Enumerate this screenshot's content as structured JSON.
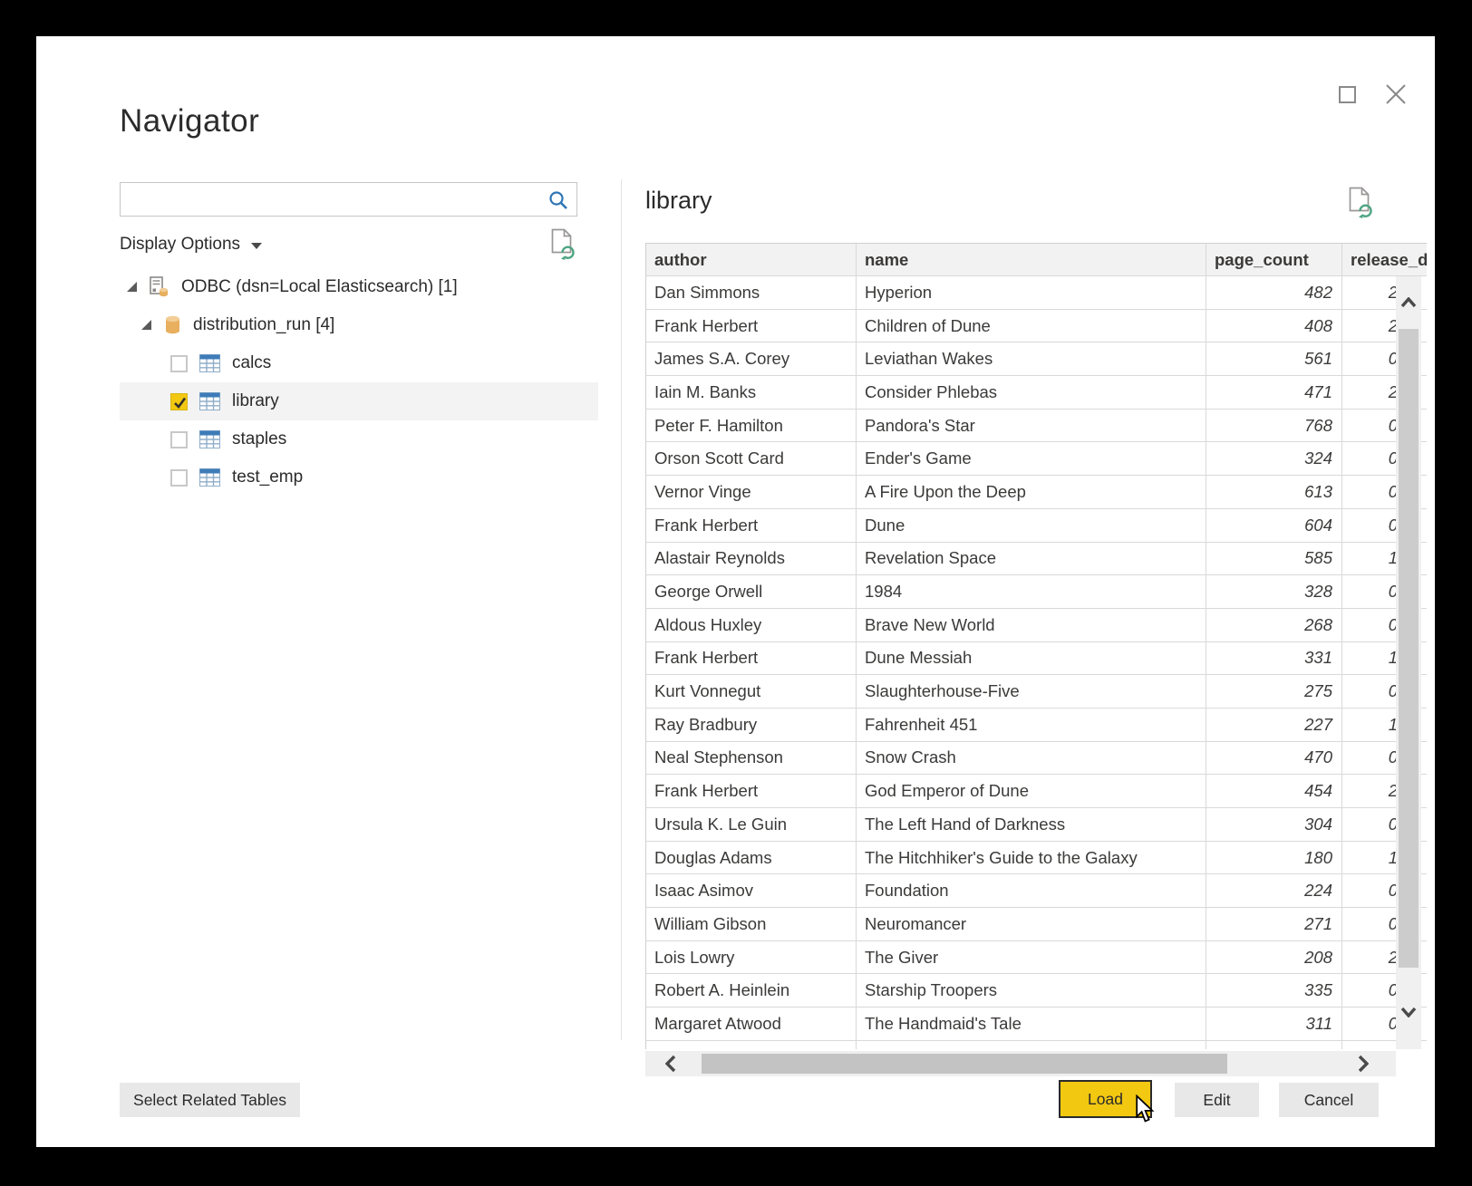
{
  "window": {
    "title": "Navigator",
    "controls": {
      "maximize_icon": "maximize",
      "close_icon": "close"
    }
  },
  "left_pane": {
    "search": {
      "value": "",
      "placeholder": "",
      "icon": "search-icon"
    },
    "display_options": {
      "label": "Display Options",
      "icon": "chevron-down-icon"
    },
    "refresh_icon": "refresh-document-icon",
    "tree": {
      "items": [
        {
          "label": "ODBC (dsn=Local Elasticsearch) [1]",
          "level": 0,
          "icon": "server-icon",
          "expanded": true,
          "checkbox": false,
          "checked": false,
          "selected": false
        },
        {
          "label": "distribution_run [4]",
          "level": 1,
          "icon": "database-icon",
          "expanded": true,
          "checkbox": false,
          "checked": false,
          "selected": false
        },
        {
          "label": "calcs",
          "level": 2,
          "icon": "table-icon",
          "checkbox": true,
          "checked": false,
          "selected": false
        },
        {
          "label": "library",
          "level": 2,
          "icon": "table-icon",
          "checkbox": true,
          "checked": true,
          "selected": true
        },
        {
          "label": "staples",
          "level": 2,
          "icon": "table-icon",
          "checkbox": true,
          "checked": false,
          "selected": false
        },
        {
          "label": "test_emp",
          "level": 2,
          "icon": "table-icon",
          "checkbox": true,
          "checked": false,
          "selected": false
        }
      ]
    }
  },
  "preview": {
    "title": "library",
    "refresh_icon": "refresh-document-icon",
    "table": {
      "columns": [
        "author",
        "name",
        "page_count",
        "release_d"
      ],
      "rows": [
        {
          "author": "Dan Simmons",
          "name": "Hyperion",
          "page_count": "482",
          "release_d_partial": "2"
        },
        {
          "author": "Frank Herbert",
          "name": "Children of Dune",
          "page_count": "408",
          "release_d_partial": "2"
        },
        {
          "author": "James S.A. Corey",
          "name": "Leviathan Wakes",
          "page_count": "561",
          "release_d_partial": "0"
        },
        {
          "author": "Iain M. Banks",
          "name": "Consider Phlebas",
          "page_count": "471",
          "release_d_partial": "2"
        },
        {
          "author": "Peter F. Hamilton",
          "name": "Pandora's Star",
          "page_count": "768",
          "release_d_partial": "0"
        },
        {
          "author": "Orson Scott Card",
          "name": "Ender's Game",
          "page_count": "324",
          "release_d_partial": "0"
        },
        {
          "author": "Vernor Vinge",
          "name": "A Fire Upon the Deep",
          "page_count": "613",
          "release_d_partial": "0"
        },
        {
          "author": "Frank Herbert",
          "name": "Dune",
          "page_count": "604",
          "release_d_partial": "0"
        },
        {
          "author": "Alastair Reynolds",
          "name": "Revelation Space",
          "page_count": "585",
          "release_d_partial": "1"
        },
        {
          "author": "George Orwell",
          "name": "1984",
          "page_count": "328",
          "release_d_partial": "0"
        },
        {
          "author": "Aldous Huxley",
          "name": "Brave New World",
          "page_count": "268",
          "release_d_partial": "0"
        },
        {
          "author": "Frank Herbert",
          "name": "Dune Messiah",
          "page_count": "331",
          "release_d_partial": "1"
        },
        {
          "author": "Kurt Vonnegut",
          "name": "Slaughterhouse-Five",
          "page_count": "275",
          "release_d_partial": "0"
        },
        {
          "author": "Ray Bradbury",
          "name": "Fahrenheit 451",
          "page_count": "227",
          "release_d_partial": "1"
        },
        {
          "author": "Neal Stephenson",
          "name": "Snow Crash",
          "page_count": "470",
          "release_d_partial": "0"
        },
        {
          "author": "Frank Herbert",
          "name": "God Emperor of Dune",
          "page_count": "454",
          "release_d_partial": "2"
        },
        {
          "author": "Ursula K. Le Guin",
          "name": "The Left Hand of Darkness",
          "page_count": "304",
          "release_d_partial": "0"
        },
        {
          "author": "Douglas Adams",
          "name": "The Hitchhiker's Guide to the Galaxy",
          "page_count": "180",
          "release_d_partial": "1"
        },
        {
          "author": "Isaac Asimov",
          "name": "Foundation",
          "page_count": "224",
          "release_d_partial": "0"
        },
        {
          "author": "William Gibson",
          "name": "Neuromancer",
          "page_count": "271",
          "release_d_partial": "0"
        },
        {
          "author": "Lois Lowry",
          "name": "The Giver",
          "page_count": "208",
          "release_d_partial": "2"
        },
        {
          "author": "Robert A. Heinlein",
          "name": "Starship Troopers",
          "page_count": "335",
          "release_d_partial": "0"
        },
        {
          "author": "Margaret Atwood",
          "name": "The Handmaid's Tale",
          "page_count": "311",
          "release_d_partial": "0"
        }
      ]
    }
  },
  "footer": {
    "select_related": "Select Related Tables",
    "load": "Load",
    "edit": "Edit",
    "cancel": "Cancel"
  },
  "colors": {
    "accent_yellow": "#F2C811",
    "search_blue": "#2E75B6",
    "refresh_green": "#4FA583",
    "table_icon_blue": "#3E7CB8",
    "database_orange": "#E7AF5E"
  }
}
